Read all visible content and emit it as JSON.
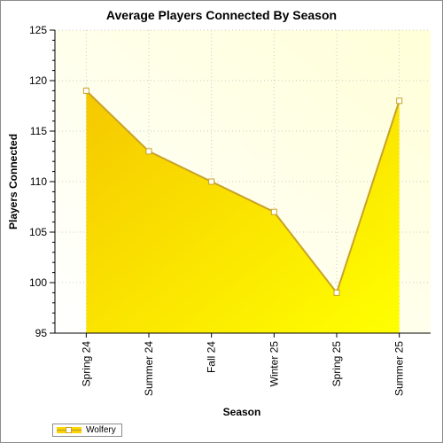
{
  "chart_data": {
    "type": "area",
    "title": "Average Players Connected By Season",
    "xlabel": "Season",
    "ylabel": "Players Connected",
    "categories": [
      "Spring 24",
      "Summer 24",
      "Fall 24",
      "Winter 25",
      "Spring 25",
      "Summer 25"
    ],
    "series": [
      {
        "name": "Wolfery",
        "values": [
          119,
          113,
          110,
          107,
          99,
          118
        ]
      }
    ],
    "ylim": [
      95,
      125
    ],
    "yticks": [
      95,
      100,
      105,
      110,
      115,
      120,
      125
    ],
    "grid": true,
    "legend_position": "bottom-left",
    "colors": {
      "fill_dark": "#f5c800",
      "fill_light": "#ffff00",
      "line": "#c9a227",
      "plot_bg_light": "#ffffe6",
      "plot_bg_dark": "#fffff0",
      "grid": "#c8c8c8"
    }
  }
}
